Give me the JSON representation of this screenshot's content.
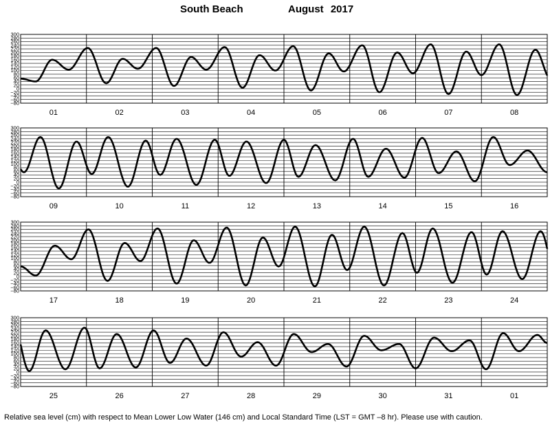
{
  "title": {
    "location": "South Beach",
    "month": "August",
    "year": "2017"
  },
  "footnote": "Relative sea level (cm) with respect to Mean Lower Low Water (146 cm) and Local Standard Time (LST = GMT –8 hr). Please use with caution.",
  "chart_data": {
    "type": "line",
    "title": "South Beach  August 2017",
    "ylabel": "",
    "xlabel": "",
    "ylim": [
      -80,
      300
    ],
    "yticks": [
      300,
      280,
      260,
      240,
      220,
      200,
      180,
      160,
      140,
      120,
      100,
      80,
      60,
      40,
      20,
      0,
      -20,
      -40,
      -60,
      -80
    ],
    "ytick_labels": [
      "300",
      "280",
      "260",
      "240",
      "220",
      "200",
      "180",
      "160",
      "140",
      "120",
      "100",
      "80",
      "60",
      "40",
      "20",
      "0",
      "−20",
      "−40",
      "−60",
      "−80"
    ],
    "grid": true,
    "panels": [
      {
        "days": [
          "01",
          "02",
          "03",
          "04",
          "05",
          "06",
          "07",
          "08"
        ]
      },
      {
        "days": [
          "09",
          "10",
          "11",
          "12",
          "13",
          "14",
          "15",
          "16"
        ]
      },
      {
        "days": [
          "17",
          "18",
          "19",
          "20",
          "21",
          "22",
          "23",
          "24"
        ]
      },
      {
        "days": [
          "25",
          "26",
          "27",
          "28",
          "29",
          "30",
          "31",
          "01"
        ]
      }
    ],
    "series": [
      {
        "x_unit": "day of period (LST)",
        "points": [
          [
            0.0,
            55
          ],
          [
            0.23,
            40
          ],
          [
            0.48,
            160
          ],
          [
            0.73,
            105
          ],
          [
            1.02,
            225
          ],
          [
            1.3,
            30
          ],
          [
            1.55,
            165
          ],
          [
            1.78,
            110
          ],
          [
            2.06,
            225
          ],
          [
            2.33,
            15
          ],
          [
            2.59,
            175
          ],
          [
            2.82,
            105
          ],
          [
            3.1,
            230
          ],
          [
            3.37,
            5
          ],
          [
            3.63,
            185
          ],
          [
            3.87,
            100
          ],
          [
            4.14,
            235
          ],
          [
            4.41,
            -10
          ],
          [
            4.68,
            195
          ],
          [
            4.91,
            95
          ],
          [
            5.19,
            240
          ],
          [
            5.45,
            -20
          ],
          [
            5.72,
            200
          ],
          [
            5.96,
            85
          ],
          [
            6.23,
            245
          ],
          [
            6.5,
            -30
          ],
          [
            6.77,
            205
          ],
          [
            7.0,
            75
          ],
          [
            7.27,
            245
          ],
          [
            7.54,
            -35
          ],
          [
            7.82,
            215
          ],
          [
            8.05,
            55
          ],
          [
            8.3,
            250
          ],
          [
            8.58,
            -35
          ],
          [
            8.85,
            225
          ],
          [
            9.08,
            45
          ],
          [
            9.33,
            250
          ],
          [
            9.63,
            -25
          ],
          [
            9.9,
            230
          ],
          [
            10.12,
            40
          ],
          [
            10.37,
            240
          ],
          [
            10.67,
            -15
          ],
          [
            10.95,
            235
          ],
          [
            11.17,
            35
          ],
          [
            11.43,
            225
          ],
          [
            11.73,
            -5
          ],
          [
            12.0,
            235
          ],
          [
            12.22,
            30
          ],
          [
            12.48,
            205
          ],
          [
            12.78,
            10
          ],
          [
            13.05,
            240
          ],
          [
            13.28,
            30
          ],
          [
            13.55,
            185
          ],
          [
            13.83,
            25
          ],
          [
            14.1,
            245
          ],
          [
            14.35,
            50
          ],
          [
            14.62,
            170
          ],
          [
            14.9,
            5
          ],
          [
            15.18,
            250
          ],
          [
            15.43,
            95
          ],
          [
            15.7,
            175
          ],
          [
            16.0,
            55
          ],
          [
            16.23,
            5
          ],
          [
            16.52,
            170
          ],
          [
            16.77,
            95
          ],
          [
            17.03,
            260
          ],
          [
            17.32,
            -25
          ],
          [
            17.58,
            185
          ],
          [
            17.82,
            85
          ],
          [
            18.08,
            265
          ],
          [
            18.37,
            -40
          ],
          [
            18.63,
            200
          ],
          [
            18.87,
            75
          ],
          [
            19.13,
            270
          ],
          [
            19.42,
            -50
          ],
          [
            19.68,
            215
          ],
          [
            19.92,
            55
          ],
          [
            20.17,
            275
          ],
          [
            20.47,
            -55
          ],
          [
            20.73,
            230
          ],
          [
            20.96,
            35
          ],
          [
            21.22,
            275
          ],
          [
            21.52,
            -50
          ],
          [
            21.8,
            240
          ],
          [
            22.02,
            20
          ],
          [
            22.26,
            265
          ],
          [
            22.56,
            -35
          ],
          [
            22.85,
            245
          ],
          [
            23.08,
            10
          ],
          [
            23.32,
            250
          ],
          [
            23.62,
            -15
          ],
          [
            23.9,
            250
          ],
          [
            24.13,
            5
          ],
          [
            24.38,
            230
          ],
          [
            24.68,
            15
          ],
          [
            24.97,
            245
          ],
          [
            25.2,
            20
          ],
          [
            25.46,
            210
          ],
          [
            25.75,
            25
          ],
          [
            26.02,
            230
          ],
          [
            26.27,
            50
          ],
          [
            26.52,
            185
          ],
          [
            26.82,
            35
          ],
          [
            27.08,
            220
          ],
          [
            27.35,
            85
          ],
          [
            27.6,
            165
          ],
          [
            27.88,
            35
          ],
          [
            28.15,
            210
          ],
          [
            28.42,
            110
          ],
          [
            28.67,
            155
          ],
          [
            28.95,
            30
          ],
          [
            29.22,
            200
          ],
          [
            29.48,
            120
          ],
          [
            29.75,
            155
          ],
          [
            30.0,
            20
          ],
          [
            30.28,
            190
          ],
          [
            30.55,
            115
          ],
          [
            30.82,
            175
          ],
          [
            31.07,
            15
          ],
          [
            31.33,
            215
          ],
          [
            31.57,
            115
          ],
          [
            31.85,
            205
          ],
          [
            32.0,
            160
          ]
        ]
      }
    ]
  }
}
